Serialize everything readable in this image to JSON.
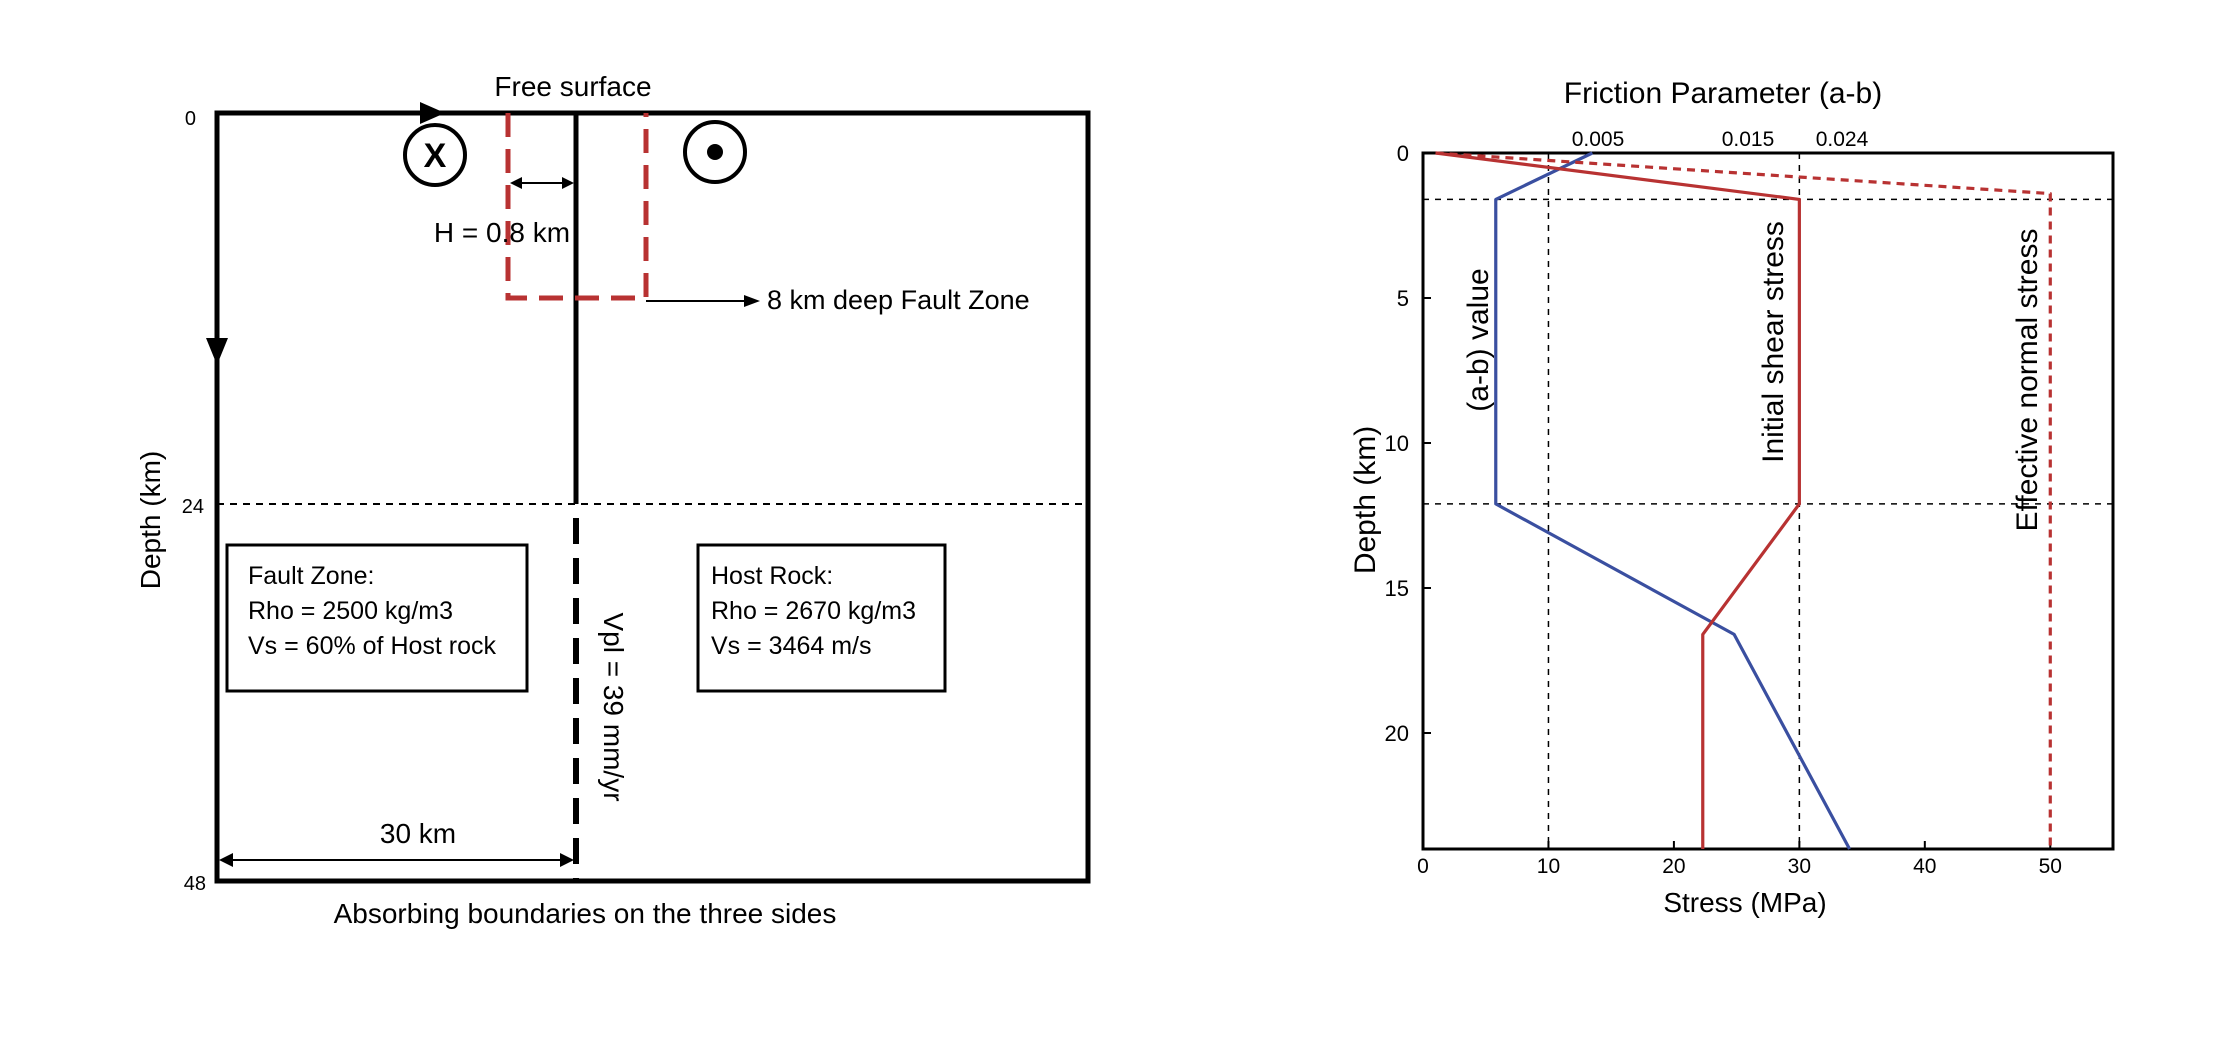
{
  "model_diagram": {
    "top_label": "Free surface",
    "bottom_label": "Absorbing boundaries on the three sides",
    "depth_axis_label": "Depth (km)",
    "depth_ticks": [
      "0",
      "24",
      "48"
    ],
    "halfwidth_label": "H = 0.8 km",
    "fault_zone_arrow_label": "8 km deep Fault Zone",
    "distance_label": "30 km",
    "plate_rate_label": "Vpl = 39 mm/yr",
    "into_page_symbol": "X",
    "fault_zone_box": {
      "title": "Fault Zone:",
      "line1": "Rho = 2500 kg/m3",
      "line2": "Vs = 60% of Host rock"
    },
    "host_rock_box": {
      "title": "Host Rock:",
      "line1": "Rho = 2670 kg/m3",
      "line2": "Vs = 3464 m/s"
    },
    "colors": {
      "fault_zone_outline": "#b83232",
      "lines": "#000000"
    }
  },
  "chart_data": {
    "type": "line",
    "title": "Friction Parameter (a-b)",
    "xlabel": "Stress (MPa)",
    "ylabel": "Depth (km)",
    "xlim": [
      0,
      55
    ],
    "ylim": [
      24,
      0
    ],
    "x_ticks": [
      "0",
      "10",
      "20",
      "30",
      "40",
      "50"
    ],
    "y_ticks": [
      "0",
      "5",
      "10",
      "15",
      "20"
    ],
    "top_ticks": [
      "0.005",
      "0.015",
      "0.024"
    ],
    "series": [
      {
        "name": "(a-b) value",
        "color": "#3a4fa0",
        "style": "solid",
        "x": [
          13.5,
          5.8,
          5.8,
          24.8,
          34.0
        ],
        "y": [
          0,
          1.6,
          12.1,
          16.6,
          24
        ]
      },
      {
        "name": "Initial shear stress",
        "color": "#b83232",
        "style": "solid",
        "x": [
          1.0,
          30.0,
          30.0,
          22.3,
          22.3
        ],
        "y": [
          0,
          1.6,
          12.1,
          16.6,
          24
        ]
      },
      {
        "name": "Effective normal stress",
        "color": "#b83232",
        "style": "dashed",
        "x": [
          1.0,
          50.0,
          50.0
        ],
        "y": [
          0,
          1.4,
          24
        ]
      }
    ],
    "grid": {
      "vertical_x": [
        10,
        30
      ],
      "horizontal_y": [
        1.6,
        12.1
      ]
    }
  }
}
